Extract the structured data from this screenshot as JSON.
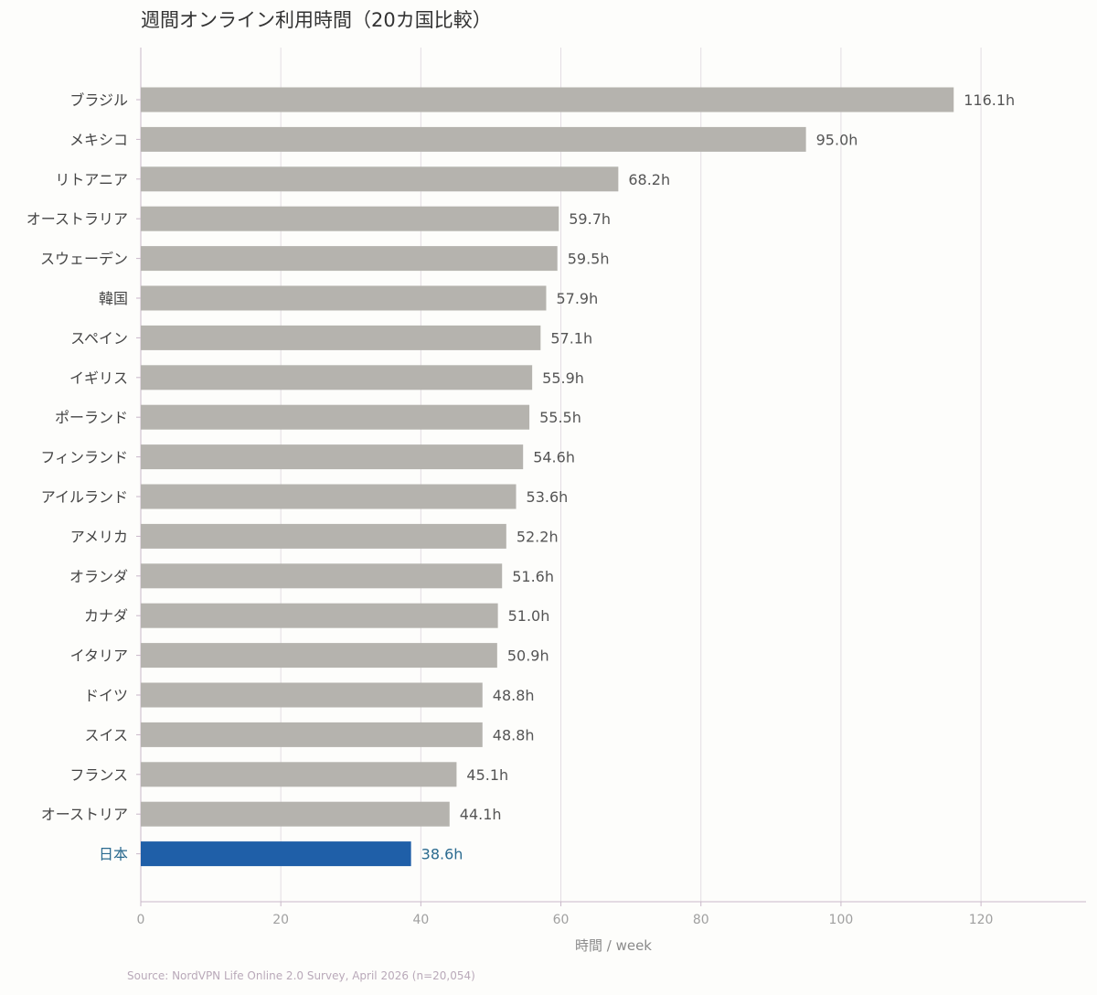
{
  "chart_data": {
    "type": "bar",
    "orientation": "horizontal",
    "title": "週間オンライン利用時間（20カ国比較）",
    "xlabel": "時間 / week",
    "ylabel": "",
    "xlim": [
      0,
      135
    ],
    "xticks": [
      0,
      20,
      40,
      60,
      80,
      100,
      120
    ],
    "grid": "vertical",
    "value_suffix": "h",
    "categories": [
      "ブラジル",
      "メキシコ",
      "リトアニア",
      "オーストラリア",
      "スウェーデン",
      "韓国",
      "スペイン",
      "イギリス",
      "ポーランド",
      "フィンランド",
      "アイルランド",
      "アメリカ",
      "オランダ",
      "カナダ",
      "イタリア",
      "ドイツ",
      "スイス",
      "フランス",
      "オーストリア",
      "日本"
    ],
    "values": [
      116.1,
      95.0,
      68.2,
      59.7,
      59.5,
      57.9,
      57.1,
      55.9,
      55.5,
      54.6,
      53.6,
      52.2,
      51.6,
      51.0,
      50.9,
      48.8,
      48.8,
      45.1,
      44.1,
      38.6
    ],
    "highlight": "日本",
    "colors": {
      "bar": "#b5b3ae",
      "highlight": "#1f5fa8",
      "grid": "#e3dde3",
      "axis": "#c9b8c9",
      "tick_text": "#a0a0a0",
      "label_text": "#555555",
      "highlight_text": "#2a6a8f"
    }
  },
  "source": "Source: NordVPN Life Online 2.0 Survey, April 2026 (n=20,054)"
}
